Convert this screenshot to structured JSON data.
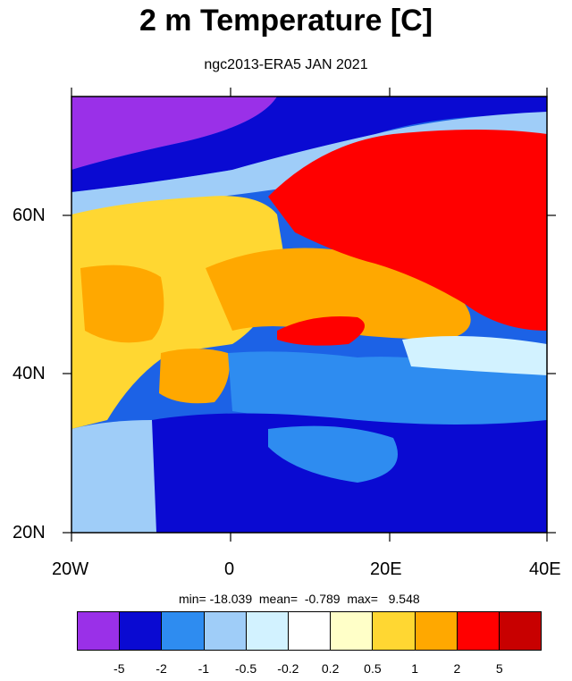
{
  "header": {
    "title": "2 m Temperature [C]",
    "subtitle": "ngc2013-ERA5 JAN 2021"
  },
  "map": {
    "lon_range": [
      -20,
      40
    ],
    "lat_range": [
      20,
      75
    ],
    "lat_labels": [
      "20N",
      "40N",
      "60N"
    ],
    "lon_labels": [
      "20W",
      "0",
      "20E",
      "40E"
    ]
  },
  "stats": {
    "text": "min= -18.039  mean=  -0.789  max=   9.548"
  },
  "colorbar": {
    "colors": [
      "#9a30e8",
      "#0a0ad2",
      "#2e8cf0",
      "#9fcdf8",
      "#d2f2ff",
      "#ffffff",
      "#ffffc8",
      "#ffd732",
      "#ffa800",
      "#ff0000",
      "#c80000"
    ],
    "labels": [
      "-5",
      "-2",
      "-1",
      "-0.5",
      "-0.2",
      "0.2",
      "0.5",
      "1",
      "2",
      "5"
    ]
  }
}
